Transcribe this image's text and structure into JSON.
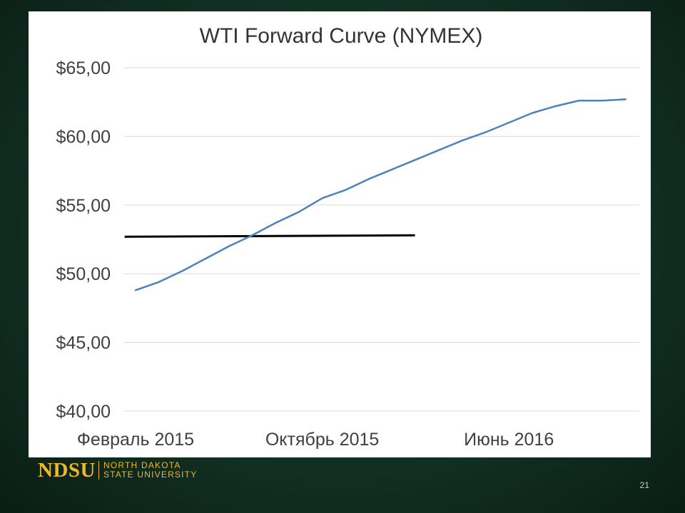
{
  "footer": {
    "logo_text": "NDSU",
    "logo_line1": "NORTH DAKOTA",
    "logo_line2": "STATE UNIVERSITY",
    "page_number": "21"
  },
  "colors": {
    "series": "#4f81bd",
    "reference_line": "#000000",
    "gridline": "#d9d9d9",
    "logo": "#f0b823"
  },
  "chart_data": {
    "type": "line",
    "title": "WTI Forward Curve (NYMEX)",
    "xlabel": "",
    "ylabel": "",
    "ylim": [
      40,
      65
    ],
    "y_ticks": [
      {
        "value": 65,
        "label": "$65,00"
      },
      {
        "value": 60,
        "label": "$60,00"
      },
      {
        "value": 55,
        "label": "$55,00"
      },
      {
        "value": 50,
        "label": "$50,00"
      },
      {
        "value": 45,
        "label": "$45,00"
      },
      {
        "value": 40,
        "label": "$40,00"
      }
    ],
    "x_tick_labels": [
      {
        "index": 0,
        "label": "Февраль 2015"
      },
      {
        "index": 8,
        "label": "Октябрь 2015"
      },
      {
        "index": 16,
        "label": "Июнь 2016"
      }
    ],
    "grid": true,
    "legend": "none",
    "series": [
      {
        "values": [
          48.8,
          49.4,
          50.2,
          51.1,
          52.0,
          52.8,
          53.7,
          54.5,
          55.5,
          56.1,
          56.9,
          57.6,
          58.3,
          59.0,
          59.7,
          60.3,
          61.0,
          61.7,
          62.2,
          62.6,
          62.6,
          62.7
        ]
      }
    ],
    "reference_line": {
      "value": 52.8,
      "from_index": -0.5,
      "to_index": 8.0
    }
  }
}
